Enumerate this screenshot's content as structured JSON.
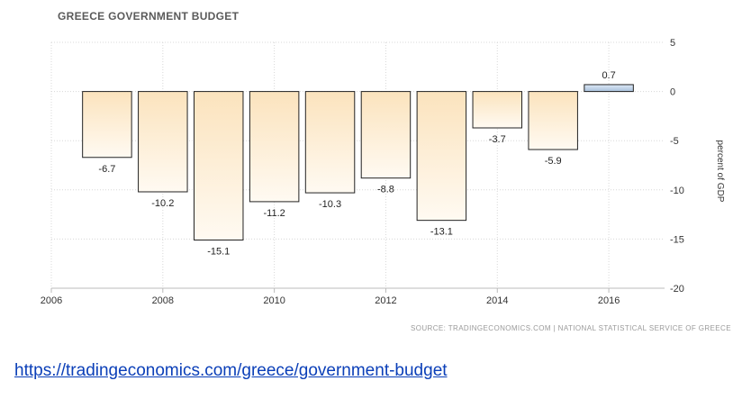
{
  "chart_data": {
    "type": "bar",
    "title": "GREECE GOVERNMENT BUDGET",
    "ylabel": "percent of GDP",
    "xlabel": "",
    "x": [
      2007,
      2008,
      2009,
      2010,
      2011,
      2012,
      2013,
      2014,
      2015,
      2016
    ],
    "values": [
      -6.7,
      -10.2,
      -15.1,
      -11.2,
      -10.3,
      -8.8,
      -13.1,
      -3.7,
      -5.9,
      0.7
    ],
    "data_labels": [
      "-6.7",
      "-10.2",
      "-15.1",
      "-11.2",
      "-10.3",
      "-8.8",
      "-13.1",
      "-3.7",
      "-5.9",
      "0.7"
    ],
    "xlim": [
      2006,
      2017
    ],
    "ylim": [
      -20,
      5
    ],
    "x_ticks": [
      "2006",
      "2008",
      "2010",
      "2012",
      "2014",
      "2016"
    ],
    "y_ticks": [
      "5",
      "0",
      "-5",
      "-10",
      "-15",
      "-20"
    ],
    "grid": true,
    "colors": {
      "negative_fill_top": "#fbe3bd",
      "negative_fill_bottom": "#fffaf2",
      "positive_fill_top": "#dde9f6",
      "positive_fill_bottom": "#a9c1dc",
      "bar_stroke": "#222222",
      "grid": "#d8d8d8"
    }
  },
  "source_text": "SOURCE: TRADINGECONOMICS.COM | NATIONAL STATISTICAL SERVICE OF GREECE",
  "link_text": "https://tradingeconomics.com/greece/government-budget"
}
